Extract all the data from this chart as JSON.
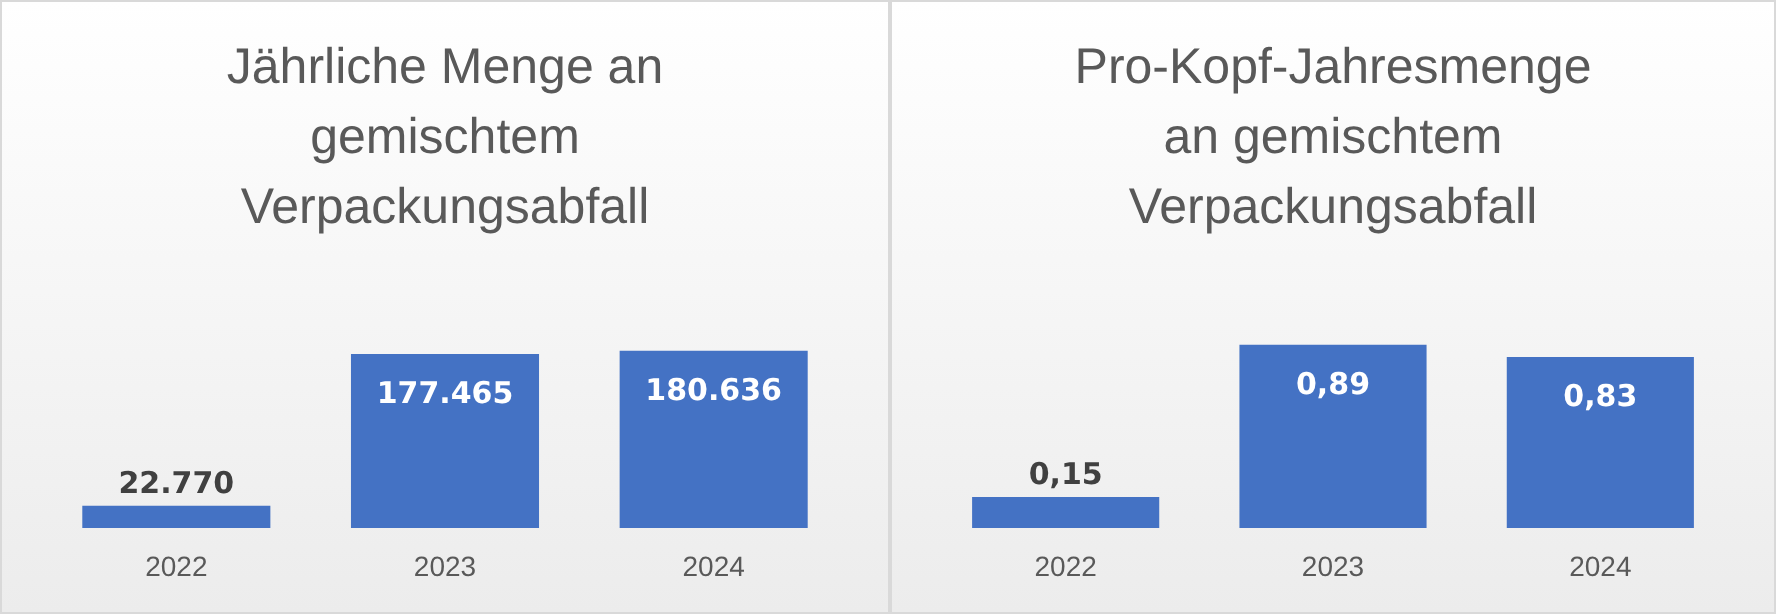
{
  "chart_data": [
    {
      "type": "bar",
      "title": "Jährliche Menge an\ngemischtem\nVerpackungsabfall",
      "categories": [
        "2022",
        "2023",
        "2024"
      ],
      "values": [
        22770,
        177465,
        180636
      ],
      "value_labels": [
        "22.770",
        "177.465",
        "180.636"
      ],
      "color": "#4472c4",
      "grid": false
    },
    {
      "type": "bar",
      "title": "Pro-Kopf-Jahresmenge\nan gemischtem\nVerpackungsabfall",
      "categories": [
        "2022",
        "2023",
        "2024"
      ],
      "values": [
        0.15,
        0.89,
        0.83
      ],
      "value_labels": [
        "0,15",
        "0,89",
        "0,83"
      ],
      "color": "#4472c4",
      "grid": false
    }
  ]
}
